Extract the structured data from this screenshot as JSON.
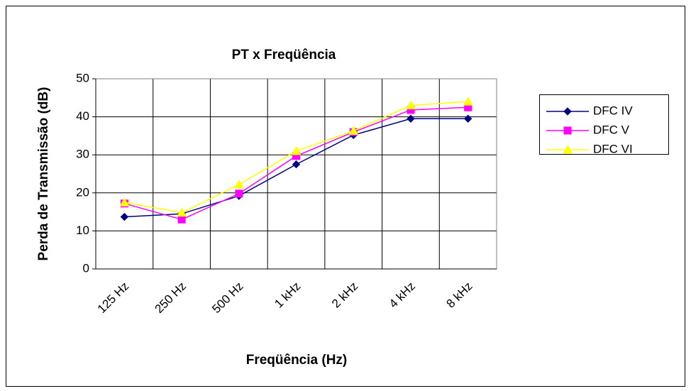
{
  "chart_data": {
    "type": "line",
    "title": "PT x Freqüência",
    "x_label": "Freqüência (Hz)",
    "y_label": "Perda de Transmissão (dB)",
    "categories": [
      "125 Hz",
      "250 Hz",
      "500 Hz",
      "1 kHz",
      "2 kHz",
      "4 kHz",
      "8 kHz"
    ],
    "series": [
      {
        "name": "DFC IV",
        "color": "#000080",
        "marker": "diamond",
        "values": [
          13.7,
          14.5,
          19.2,
          27.5,
          35.2,
          39.5,
          39.5
        ]
      },
      {
        "name": "DFC V",
        "color": "#ff00ff",
        "marker": "square",
        "values": [
          17.2,
          13.0,
          19.8,
          29.7,
          36.0,
          41.8,
          42.5
        ]
      },
      {
        "name": "DFC VI",
        "color": "#ffff00",
        "marker": "triangle",
        "values": [
          17.5,
          14.8,
          22.2,
          31.0,
          36.3,
          43.0,
          44.0
        ]
      }
    ],
    "ylim": [
      0,
      50
    ],
    "yticks": [
      0,
      10,
      20,
      30,
      40,
      50
    ],
    "grid": true,
    "legend": "right"
  }
}
